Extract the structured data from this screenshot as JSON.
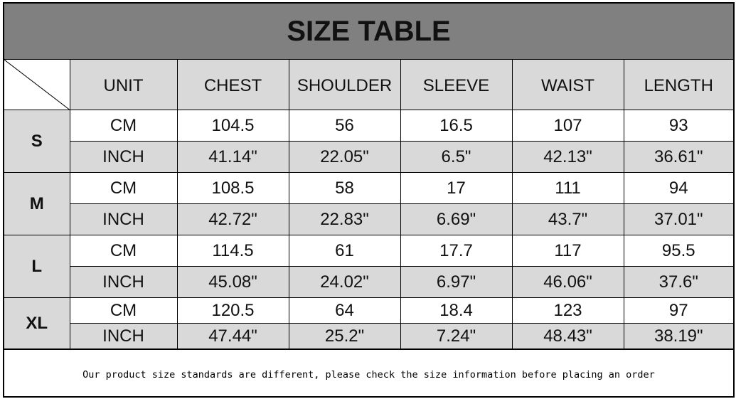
{
  "title": "SIZE TABLE",
  "headers": [
    "UNIT",
    "CHEST",
    "SHOULDER",
    "SLEEVE",
    "WAIST",
    "LENGTH"
  ],
  "rows": [
    {
      "size": "S",
      "cm": [
        "CM",
        "104.5",
        "56",
        "16.5",
        "107",
        "93"
      ],
      "inch": [
        "INCH",
        "41.14\"",
        "22.05\"",
        "6.5\"",
        "42.13\"",
        "36.61\""
      ]
    },
    {
      "size": "M",
      "cm": [
        "CM",
        "108.5",
        "58",
        "17",
        "111",
        "94"
      ],
      "inch": [
        "INCH",
        "42.72\"",
        "22.83\"",
        "6.69\"",
        "43.7\"",
        "37.01\""
      ]
    },
    {
      "size": "L",
      "cm": [
        "CM",
        "114.5",
        "61",
        "17.7",
        "117",
        "95.5"
      ],
      "inch": [
        "INCH",
        "45.08\"",
        "24.02\"",
        "6.97\"",
        "46.06\"",
        "37.6\""
      ]
    },
    {
      "size": "XL",
      "cm": [
        "CM",
        "120.5",
        "64",
        "18.4",
        "123",
        "97"
      ],
      "inch": [
        "INCH",
        "47.44\"",
        "25.2\"",
        "7.24\"",
        "48.43\"",
        "38.19\""
      ]
    }
  ],
  "footer_note": "Our product size standards are different, please check the size information before placing an order",
  "colors": {
    "title_bg": "#808080",
    "cell_gray": "#d9d9d9"
  }
}
